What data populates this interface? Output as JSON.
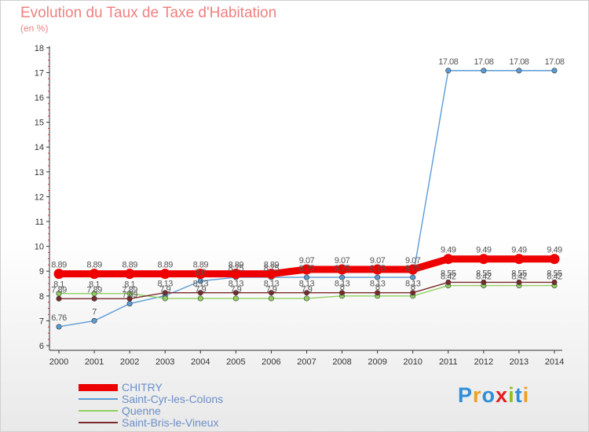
{
  "chart_data": {
    "type": "line",
    "title": "Evolution du Taux de Taxe d'Habitation",
    "subtitle": "(en %)",
    "x": [
      "2000",
      "2001",
      "2002",
      "2003",
      "2004",
      "2005",
      "2006",
      "2007",
      "2008",
      "2009",
      "2010",
      "2011",
      "2012",
      "2013",
      "2014"
    ],
    "ylim": [
      6,
      18
    ],
    "yticks": [
      "6",
      "7",
      "8",
      "9",
      "10",
      "11",
      "12",
      "13",
      "14",
      "15",
      "16",
      "17",
      "18"
    ],
    "grid": false,
    "legend_position": "bottom-left",
    "series": [
      {
        "name": "CHITRY",
        "color": "#ee0000",
        "values": [
          8.89,
          8.89,
          8.89,
          8.89,
          8.89,
          8.89,
          8.89,
          9.07,
          9.07,
          9.07,
          9.07,
          9.49,
          9.49,
          9.49,
          9.49
        ],
        "labels": [
          "8.89",
          "8.89",
          "8.89",
          "8.89",
          "8.89",
          "8.89",
          "8.89",
          "9.07",
          "9.07",
          "9.07",
          "9.07",
          "9.49",
          "9.49",
          "9.49",
          "9.49"
        ]
      },
      {
        "name": "Saint-Cyr-les-Colons",
        "color": "#5b9bd5",
        "values": [
          6.76,
          7,
          7.69,
          8.01,
          8.6,
          8.75,
          8.75,
          8.75,
          8.75,
          8.75,
          8.75,
          17.08,
          17.08,
          17.08,
          17.08
        ],
        "labels": [
          "6.76",
          "7",
          "7.69",
          "",
          "8.6",
          "8.75",
          "8.75",
          "8.75",
          "8.75",
          "8.75",
          "8.75",
          "17.08",
          "17.08",
          "17.08",
          "17.08"
        ]
      },
      {
        "name": "Quenne",
        "color": "#90d060",
        "values": [
          8.1,
          8.1,
          8.1,
          7.9,
          7.9,
          7.9,
          7.9,
          7.9,
          8,
          8,
          8,
          8.42,
          8.42,
          8.42,
          8.42
        ],
        "labels": [
          "8.1",
          "8.1",
          "8.1",
          "7.9",
          "7.9",
          "7.9",
          "7.9",
          "7.9",
          "8",
          "8",
          "8",
          "8.42",
          "8.42",
          "8.42",
          "8.42"
        ]
      },
      {
        "name": "Saint-Bris-le-Vineux",
        "color": "#7a2a2a",
        "values": [
          7.89,
          7.89,
          7.89,
          8.13,
          8.13,
          8.13,
          8.13,
          8.13,
          8.13,
          8.13,
          8.13,
          8.55,
          8.55,
          8.55,
          8.55
        ],
        "labels": [
          "7.89",
          "7.89",
          "7.89",
          "8.13",
          "8.13",
          "8.13",
          "8.13",
          "8.13",
          "8.13",
          "8.13",
          "8.13",
          "8.55",
          "8.55",
          "8.55",
          "8.55"
        ]
      }
    ]
  },
  "legend": [
    {
      "label": "CHITRY"
    },
    {
      "label": "Saint-Cyr-les-Colons"
    },
    {
      "label": "Quenne"
    },
    {
      "label": "Saint-Bris-le-Vineux"
    }
  ],
  "logo": {
    "letters": [
      "P",
      "r",
      "o",
      "x",
      "i",
      "t",
      "i"
    ],
    "colors": [
      "#2e8ed8",
      "#f0a020",
      "#2e8ed8",
      "#e02020",
      "#90c020",
      "#2e8ed8",
      "#f0a020"
    ]
  }
}
